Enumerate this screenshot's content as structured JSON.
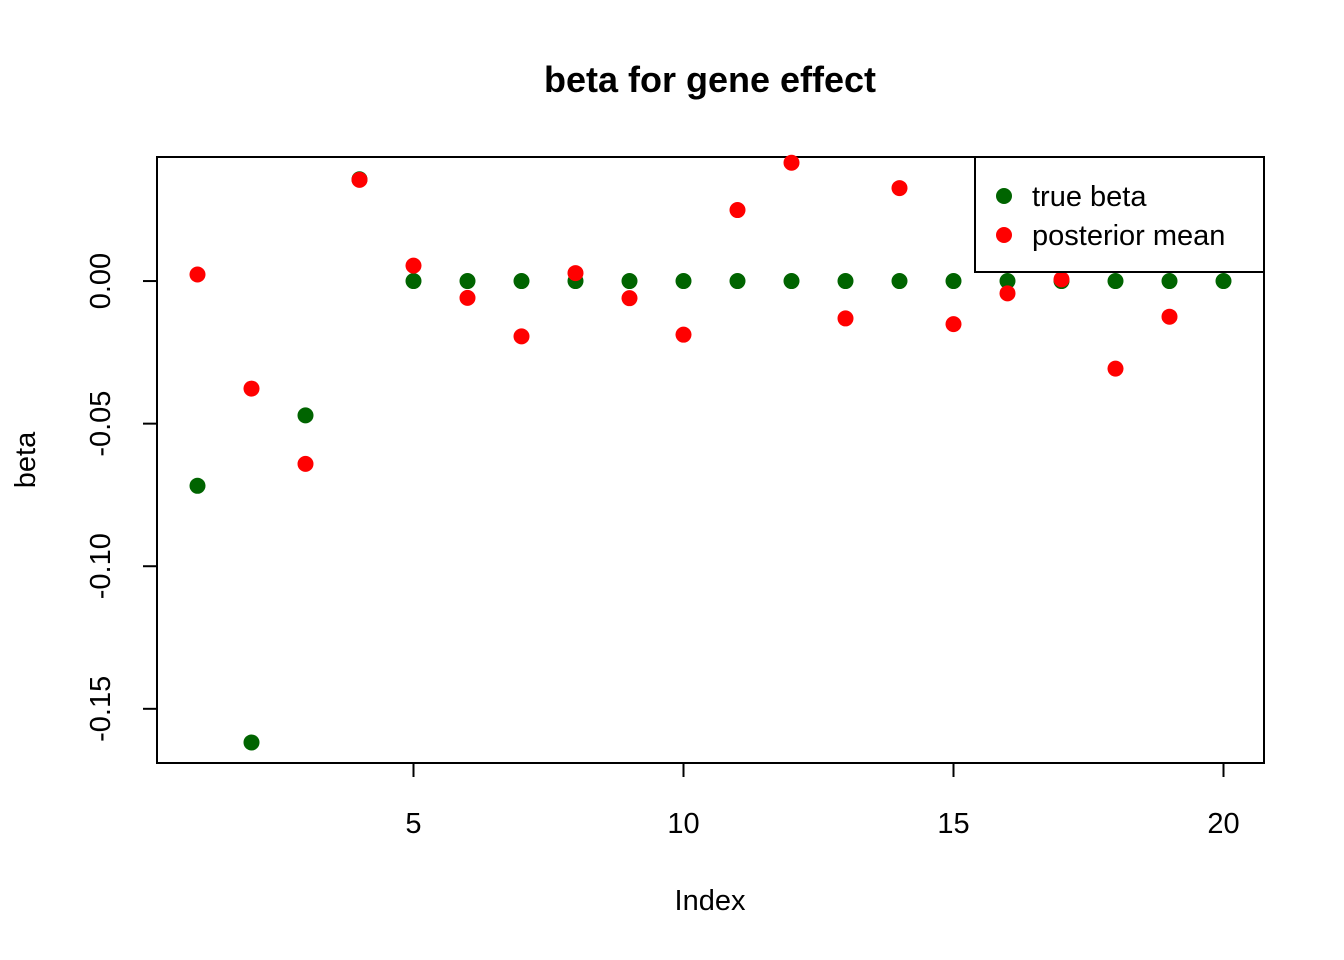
{
  "chart_data": {
    "type": "scatter",
    "title": "beta for gene effect",
    "xlabel": "Index",
    "ylabel": "beta",
    "xlim": [
      0.25,
      20.75
    ],
    "ylim": [
      -0.169,
      0.0435
    ],
    "x_ticks": [
      5,
      10,
      15,
      20
    ],
    "x_tick_labels": [
      "5",
      "10",
      "15",
      "20"
    ],
    "y_ticks": [
      -0.15,
      -0.1,
      -0.05,
      0.0
    ],
    "y_tick_labels": [
      "-0.15",
      "-0.10",
      "-0.05",
      "0.00"
    ],
    "grid": false,
    "legend_position": "top-right",
    "x": [
      1,
      2,
      3,
      4,
      5,
      6,
      7,
      8,
      9,
      10,
      11,
      12,
      13,
      14,
      15,
      16,
      17,
      18,
      19,
      20
    ],
    "series": [
      {
        "name": "true beta",
        "color": "#006400",
        "values": [
          -0.0718,
          -0.1618,
          -0.0471,
          0.0357,
          0,
          0,
          0,
          0,
          0,
          0,
          0,
          0,
          0,
          0,
          0,
          0,
          0,
          0,
          0,
          0
        ]
      },
      {
        "name": "posterior mean",
        "color": "#ff0000",
        "values": [
          0.0023,
          -0.0377,
          -0.0641,
          0.0355,
          0.0054,
          -0.0059,
          -0.0194,
          0.0028,
          -0.006,
          -0.0188,
          0.0249,
          0.0415,
          -0.0131,
          0.0326,
          -0.0151,
          -0.0043,
          0.0006,
          -0.0307,
          -0.0125,
          null
        ]
      }
    ]
  }
}
